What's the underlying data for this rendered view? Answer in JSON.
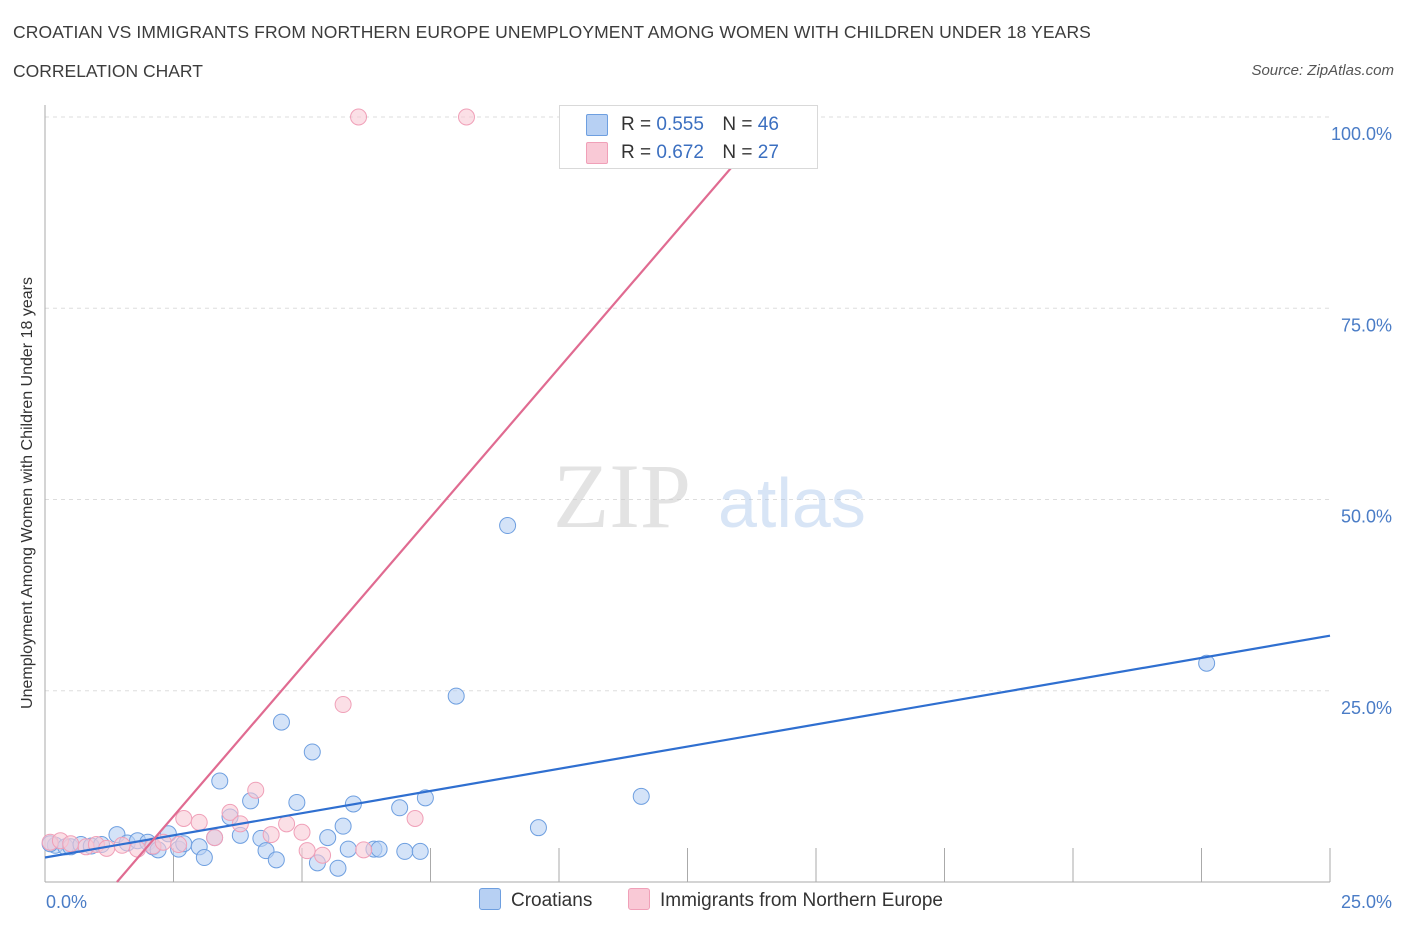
{
  "title": "CROATIAN VS IMMIGRANTS FROM NORTHERN EUROPE UNEMPLOYMENT AMONG WOMEN WITH CHILDREN UNDER 18 YEARS",
  "subtitle": "CORRELATION CHART",
  "source": "Source: ZipAtlas.com",
  "watermark": {
    "zip": "ZIP",
    "atlas": "atlas"
  },
  "legend": {
    "rows": [
      {
        "r_label": "R =",
        "r_value": "0.555",
        "n_label": "N =",
        "n_value": "46",
        "color": "#a9c6f0"
      },
      {
        "r_label": "R =",
        "r_value": "0.672",
        "n_label": "N =",
        "n_value": "27",
        "color": "#f7bccc"
      }
    ]
  },
  "bottom_legend": {
    "items": [
      {
        "label": "Croatians",
        "color": "#b7d0f3"
      },
      {
        "label": "Immigrants from Northern Europe",
        "color": "#f9c9d6"
      }
    ]
  },
  "chart_data": {
    "type": "scatter",
    "title": "CROATIAN VS IMMIGRANTS FROM NORTHERN EUROPE UNEMPLOYMENT AMONG WOMEN WITH CHILDREN UNDER 18 YEARS",
    "subtitle": "CORRELATION CHART",
    "xlabel": "",
    "ylabel": "Unemployment Among Women with Children Under 18 years",
    "xlim": [
      0,
      25
    ],
    "ylim": [
      0,
      100
    ],
    "x_tick_labels": [
      "0.0%",
      "25.0%"
    ],
    "y_tick_labels": [
      "25.0%",
      "50.0%",
      "75.0%",
      "100.0%"
    ],
    "y_ticks": [
      25,
      50,
      75,
      100
    ],
    "grid": true,
    "legend_position": "top-center",
    "series": [
      {
        "name": "Croatians",
        "color": "#6e9fe0",
        "fill": "#b7d0f3",
        "trend": {
          "x": [
            0,
            25
          ],
          "y": [
            3.2,
            32.2
          ],
          "color": "#2f6fd0"
        },
        "points": [
          [
            0.2,
            4.8
          ],
          [
            0.4,
            4.6
          ],
          [
            0.5,
            4.6
          ],
          [
            0.7,
            4.9
          ],
          [
            0.9,
            4.7
          ],
          [
            1.1,
            4.9
          ],
          [
            1.4,
            6.2
          ],
          [
            1.6,
            5.1
          ],
          [
            1.8,
            5.4
          ],
          [
            2.0,
            5.2
          ],
          [
            2.1,
            4.6
          ],
          [
            2.2,
            4.2
          ],
          [
            2.4,
            6.3
          ],
          [
            2.6,
            4.3
          ],
          [
            2.7,
            5.0
          ],
          [
            3.0,
            4.6
          ],
          [
            3.1,
            3.2
          ],
          [
            3.3,
            5.8
          ],
          [
            3.4,
            13.2
          ],
          [
            3.6,
            8.5
          ],
          [
            3.8,
            6.1
          ],
          [
            4.0,
            10.6
          ],
          [
            4.2,
            5.7
          ],
          [
            4.3,
            4.1
          ],
          [
            4.5,
            2.9
          ],
          [
            4.6,
            20.9
          ],
          [
            4.9,
            10.4
          ],
          [
            5.2,
            17.0
          ],
          [
            5.3,
            2.5
          ],
          [
            5.5,
            5.8
          ],
          [
            5.7,
            1.8
          ],
          [
            5.8,
            7.3
          ],
          [
            5.9,
            4.3
          ],
          [
            6.0,
            10.2
          ],
          [
            6.4,
            4.3
          ],
          [
            6.5,
            4.3
          ],
          [
            6.9,
            9.7
          ],
          [
            7.0,
            4.0
          ],
          [
            7.3,
            4.0
          ],
          [
            7.4,
            11.0
          ],
          [
            8.0,
            24.3
          ],
          [
            9.0,
            46.6
          ],
          [
            9.6,
            7.1
          ],
          [
            11.6,
            11.2
          ],
          [
            22.6,
            28.6
          ],
          [
            0.1,
            5.0
          ]
        ]
      },
      {
        "name": "Immigrants from Northern Europe",
        "color": "#f0a0b8",
        "fill": "#f9c9d6",
        "trend": {
          "x": [
            1.4,
            14.2
          ],
          "y": [
            0,
            100
          ],
          "color": "#e06b91"
        },
        "points": [
          [
            0.1,
            5.2
          ],
          [
            0.3,
            5.4
          ],
          [
            0.5,
            5.0
          ],
          [
            0.8,
            4.6
          ],
          [
            1.0,
            4.9
          ],
          [
            1.2,
            4.4
          ],
          [
            1.5,
            4.8
          ],
          [
            1.8,
            4.3
          ],
          [
            2.1,
            4.7
          ],
          [
            2.3,
            5.2
          ],
          [
            2.6,
            4.9
          ],
          [
            2.7,
            8.3
          ],
          [
            3.0,
            7.8
          ],
          [
            3.3,
            5.8
          ],
          [
            3.6,
            9.1
          ],
          [
            3.8,
            7.6
          ],
          [
            4.1,
            12.0
          ],
          [
            4.4,
            6.2
          ],
          [
            4.7,
            7.6
          ],
          [
            5.0,
            6.5
          ],
          [
            5.1,
            4.1
          ],
          [
            5.4,
            3.5
          ],
          [
            5.8,
            23.2
          ],
          [
            6.2,
            4.2
          ],
          [
            7.2,
            8.3
          ],
          [
            6.1,
            100
          ],
          [
            8.2,
            100
          ]
        ]
      }
    ]
  }
}
